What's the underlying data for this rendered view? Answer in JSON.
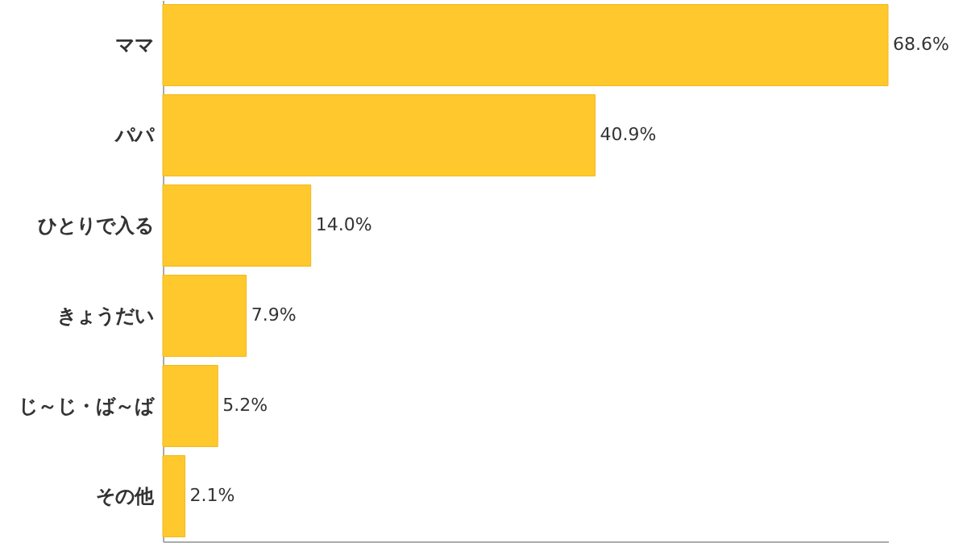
{
  "chart_data": {
    "type": "bar",
    "orientation": "horizontal",
    "categories": [
      "ママ",
      "パパ",
      "ひとりで入る",
      "きょうだい",
      "じ～じ・ば～ば",
      "その他"
    ],
    "values": [
      68.6,
      40.9,
      14.0,
      7.9,
      5.2,
      2.1
    ],
    "value_labels": [
      "68.6%",
      "40.9%",
      "14.0%",
      "7.9%",
      "5.2%",
      "2.1%"
    ],
    "color": "#ffc82c",
    "tick_labels": "y"
  }
}
